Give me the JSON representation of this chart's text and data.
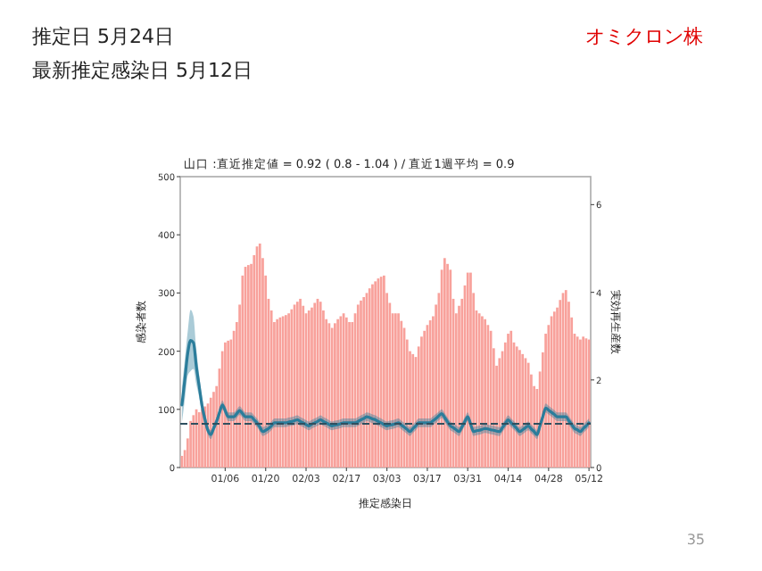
{
  "chart_data": {
    "type": "bar",
    "title": "山口 :直近推定値 = 0.92 ( 0.8 - 1.04 ) / 直近1週平均 = 0.9",
    "xlabel": "推定感染日",
    "ylabel": "感染者数",
    "y2label": "実効再生産数",
    "annotations": [
      "推定日  5月24日",
      "最新推定感染日  5月12日",
      "オミクロン株",
      "35"
    ],
    "categories": [
      null,
      null,
      null,
      null,
      null,
      null,
      null,
      null,
      null,
      null,
      null,
      null,
      null,
      null,
      null,
      "01/06",
      null,
      null,
      null,
      null,
      null,
      null,
      null,
      null,
      null,
      null,
      null,
      null,
      null,
      "01/20",
      null,
      null,
      null,
      null,
      null,
      null,
      null,
      null,
      null,
      null,
      null,
      null,
      null,
      "02/03",
      null,
      null,
      null,
      null,
      null,
      null,
      null,
      null,
      null,
      null,
      null,
      null,
      null,
      "02/17",
      null,
      null,
      null,
      null,
      null,
      null,
      null,
      null,
      null,
      null,
      null,
      null,
      null,
      "03/03",
      null,
      null,
      null,
      null,
      null,
      null,
      null,
      null,
      null,
      null,
      null,
      null,
      null,
      "03/17",
      null,
      null,
      null,
      null,
      null,
      null,
      null,
      null,
      null,
      null,
      null,
      null,
      null,
      "03/31",
      null,
      null,
      null,
      null,
      null,
      null,
      null,
      null,
      null,
      null,
      null,
      null,
      null,
      "04/14",
      null,
      null,
      null,
      null,
      null,
      null,
      null,
      null,
      null,
      null,
      null,
      null,
      null,
      "04/28",
      null,
      null,
      null,
      null,
      null,
      null,
      null,
      null,
      null,
      null,
      null,
      null,
      null,
      "05/12"
    ],
    "ylim": [
      0,
      500
    ],
    "yticks": [
      0,
      100,
      200,
      300,
      400,
      500
    ],
    "y2lim": [
      0,
      6.64
    ],
    "y2ticks": [
      0,
      2,
      4,
      6
    ],
    "ref_lines": [
      {
        "axis": "y2",
        "value": 1,
        "color": "#2f4f5f",
        "line_style": "dashed"
      }
    ],
    "series": [
      {
        "color": "#f8a19b",
        "values": [
          20,
          30,
          50,
          80,
          90,
          100,
          95,
          100,
          105,
          110,
          120,
          130,
          140,
          170,
          200,
          215,
          218,
          220,
          235,
          250,
          280,
          330,
          345,
          348,
          350,
          365,
          380,
          385,
          360,
          330,
          290,
          270,
          250,
          255,
          258,
          260,
          262,
          265,
          272,
          280,
          285,
          290,
          278,
          265,
          270,
          275,
          283,
          290,
          285,
          270,
          255,
          248,
          240,
          248,
          255,
          260,
          265,
          258,
          250,
          250,
          265,
          280,
          287,
          293,
          300,
          308,
          315,
          320,
          325,
          328,
          330,
          300,
          283,
          265,
          265,
          265,
          252,
          240,
          220,
          200,
          195,
          190,
          208,
          225,
          235,
          245,
          253,
          260,
          280,
          300,
          340,
          360,
          350,
          340,
          290,
          265,
          278,
          290,
          313,
          335,
          335,
          300,
          270,
          265,
          260,
          255,
          245,
          235,
          205,
          175,
          188,
          200,
          215,
          230,
          235,
          215,
          208,
          202,
          195,
          188,
          180,
          160,
          140,
          135,
          165,
          198,
          230,
          245,
          260,
          268,
          275,
          288,
          300,
          305,
          285,
          258,
          230,
          225,
          220,
          225,
          222,
          220
        ]
      },
      {
        "type": "line",
        "axis": "y2",
        "color": "#2b7d9b",
        "values": [
          1.43,
          2.0,
          2.6,
          2.9,
          2.85,
          2.3,
          1.85,
          1.4,
          1.1,
          0.85,
          0.75,
          0.9,
          1.05,
          1.25,
          1.43,
          1.3,
          1.16,
          1.16,
          1.16,
          1.23,
          1.3,
          1.23,
          1.16,
          1.16,
          1.16,
          1.09,
          1.02,
          0.92,
          0.82,
          0.85,
          0.89,
          0.95,
          1.02,
          1.02,
          1.02,
          1.02,
          1.02,
          1.04,
          1.05,
          1.07,
          1.09,
          1.05,
          1.02,
          0.98,
          0.95,
          0.99,
          1.02,
          1.05,
          1.09,
          1.05,
          1.02,
          0.98,
          0.95,
          0.97,
          0.98,
          1.0,
          1.02,
          1.02,
          1.02,
          1.02,
          1.02,
          1.05,
          1.09,
          1.12,
          1.16,
          1.14,
          1.11,
          1.09,
          1.05,
          1.02,
          0.98,
          0.95,
          0.97,
          0.98,
          1.0,
          1.02,
          0.97,
          0.92,
          0.87,
          0.82,
          0.89,
          0.95,
          1.02,
          1.02,
          1.02,
          1.02,
          1.02,
          1.07,
          1.12,
          1.18,
          1.23,
          1.14,
          1.04,
          0.95,
          0.91,
          0.86,
          0.82,
          0.93,
          1.05,
          1.16,
          0.99,
          0.82,
          0.84,
          0.85,
          0.87,
          0.89,
          0.88,
          0.86,
          0.85,
          0.83,
          0.82,
          0.91,
          1.0,
          1.09,
          1.02,
          0.96,
          0.89,
          0.82,
          0.86,
          0.91,
          0.95,
          0.88,
          0.82,
          0.75,
          0.95,
          1.16,
          1.36,
          1.31,
          1.26,
          1.21,
          1.16,
          1.16,
          1.16,
          1.16,
          1.07,
          0.98,
          0.89,
          0.86,
          0.82,
          0.89,
          0.95,
          1.02
        ],
        "lower": [
          1.03,
          1.55,
          2.1,
          2.2,
          2.25,
          1.9,
          1.6,
          1.2,
          0.95,
          0.75,
          0.65,
          0.8,
          0.95,
          1.15,
          1.33,
          1.2,
          1.06,
          1.06,
          1.06,
          1.13,
          1.2,
          1.13,
          1.06,
          1.06,
          1.06,
          0.99,
          0.92,
          0.82,
          0.72,
          0.75,
          0.79,
          0.85,
          0.92,
          0.92,
          0.92,
          0.92,
          0.92,
          0.94,
          0.95,
          0.97,
          0.99,
          0.95,
          0.92,
          0.88,
          0.85,
          0.89,
          0.92,
          0.95,
          0.99,
          0.95,
          0.92,
          0.88,
          0.85,
          0.87,
          0.88,
          0.9,
          0.92,
          0.92,
          0.92,
          0.92,
          0.92,
          0.95,
          0.99,
          1.02,
          1.06,
          1.04,
          1.01,
          0.99,
          0.95,
          0.92,
          0.88,
          0.85,
          0.87,
          0.88,
          0.9,
          0.92,
          0.87,
          0.82,
          0.77,
          0.72,
          0.79,
          0.85,
          0.92,
          0.92,
          0.92,
          0.92,
          0.92,
          0.97,
          1.02,
          1.08,
          1.13,
          1.04,
          0.94,
          0.85,
          0.81,
          0.76,
          0.72,
          0.83,
          0.95,
          1.06,
          0.89,
          0.72,
          0.74,
          0.75,
          0.77,
          0.79,
          0.78,
          0.76,
          0.75,
          0.73,
          0.72,
          0.81,
          0.9,
          0.99,
          0.92,
          0.86,
          0.79,
          0.72,
          0.76,
          0.81,
          0.85,
          0.78,
          0.72,
          0.65,
          0.85,
          1.06,
          1.26,
          1.21,
          1.16,
          1.11,
          1.06,
          1.06,
          1.06,
          1.06,
          0.97,
          0.88,
          0.79,
          0.76,
          0.72,
          0.79,
          0.85,
          0.92
        ],
        "upper": [
          1.83,
          2.45,
          3.1,
          3.6,
          3.45,
          2.7,
          2.1,
          1.6,
          1.25,
          0.95,
          0.85,
          1.0,
          1.15,
          1.35,
          1.53,
          1.4,
          1.26,
          1.26,
          1.26,
          1.33,
          1.4,
          1.33,
          1.26,
          1.26,
          1.26,
          1.19,
          1.12,
          1.02,
          0.92,
          0.95,
          0.99,
          1.05,
          1.12,
          1.12,
          1.12,
          1.12,
          1.12,
          1.14,
          1.15,
          1.17,
          1.19,
          1.15,
          1.12,
          1.08,
          1.05,
          1.09,
          1.12,
          1.15,
          1.19,
          1.15,
          1.12,
          1.08,
          1.05,
          1.07,
          1.08,
          1.1,
          1.12,
          1.12,
          1.12,
          1.12,
          1.12,
          1.15,
          1.19,
          1.22,
          1.26,
          1.24,
          1.21,
          1.19,
          1.15,
          1.12,
          1.08,
          1.05,
          1.07,
          1.08,
          1.1,
          1.12,
          1.07,
          1.02,
          0.97,
          0.92,
          0.99,
          1.05,
          1.12,
          1.12,
          1.12,
          1.12,
          1.12,
          1.17,
          1.22,
          1.28,
          1.33,
          1.24,
          1.14,
          1.05,
          1.01,
          0.96,
          0.92,
          1.03,
          1.15,
          1.26,
          1.09,
          0.92,
          0.94,
          0.95,
          0.97,
          0.99,
          0.98,
          0.96,
          0.95,
          0.93,
          0.92,
          1.01,
          1.1,
          1.19,
          1.12,
          1.06,
          0.99,
          0.92,
          0.96,
          1.01,
          1.05,
          0.98,
          0.92,
          0.85,
          1.05,
          1.26,
          1.46,
          1.41,
          1.36,
          1.31,
          1.26,
          1.26,
          1.26,
          1.26,
          1.17,
          1.08,
          0.99,
          0.96,
          0.92,
          0.99,
          1.05,
          1.12
        ]
      }
    ]
  }
}
